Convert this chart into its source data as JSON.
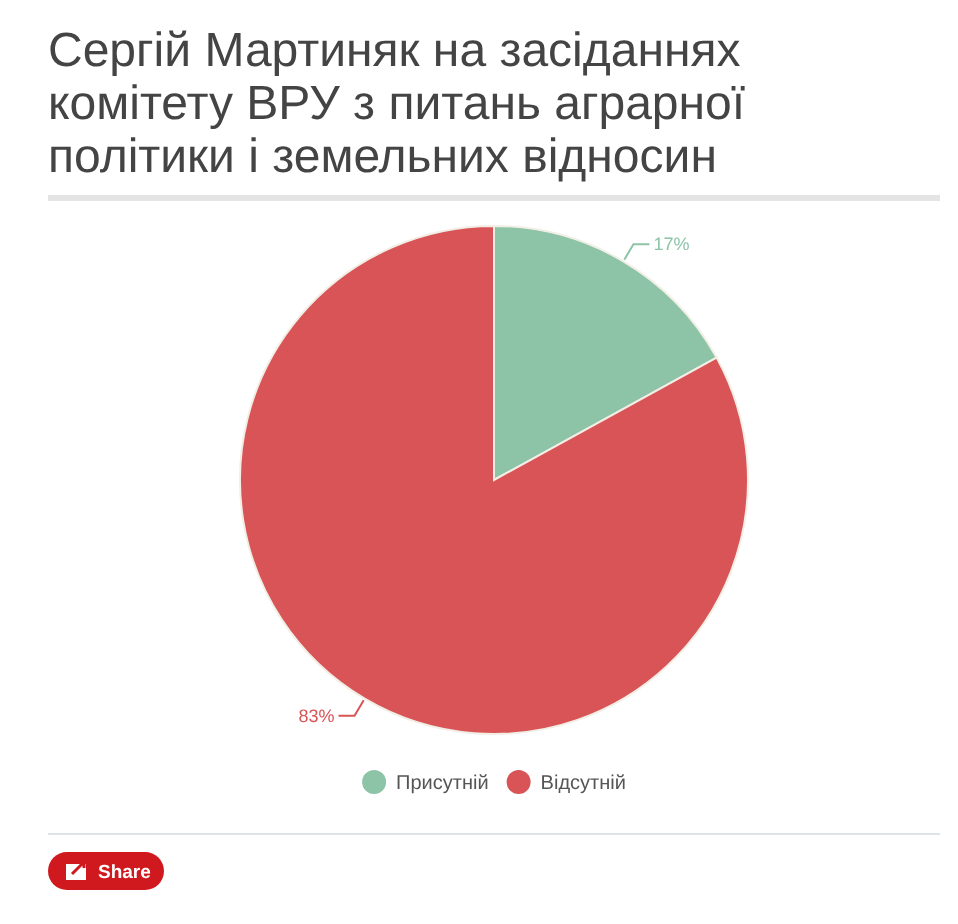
{
  "chart_data": {
    "type": "pie",
    "title": "Сергій Мартиняк на засіданнях комітету ВРУ з питань аграрної політики і земельних відносин",
    "categories": [
      "Присутній",
      "Відсутній"
    ],
    "values": [
      17,
      83
    ],
    "colors": [
      "#8dc3a7",
      "#d85456"
    ],
    "value_labels": [
      "17%",
      "83%"
    ],
    "legend": "bottom",
    "annotations": [
      "Share"
    ]
  }
}
